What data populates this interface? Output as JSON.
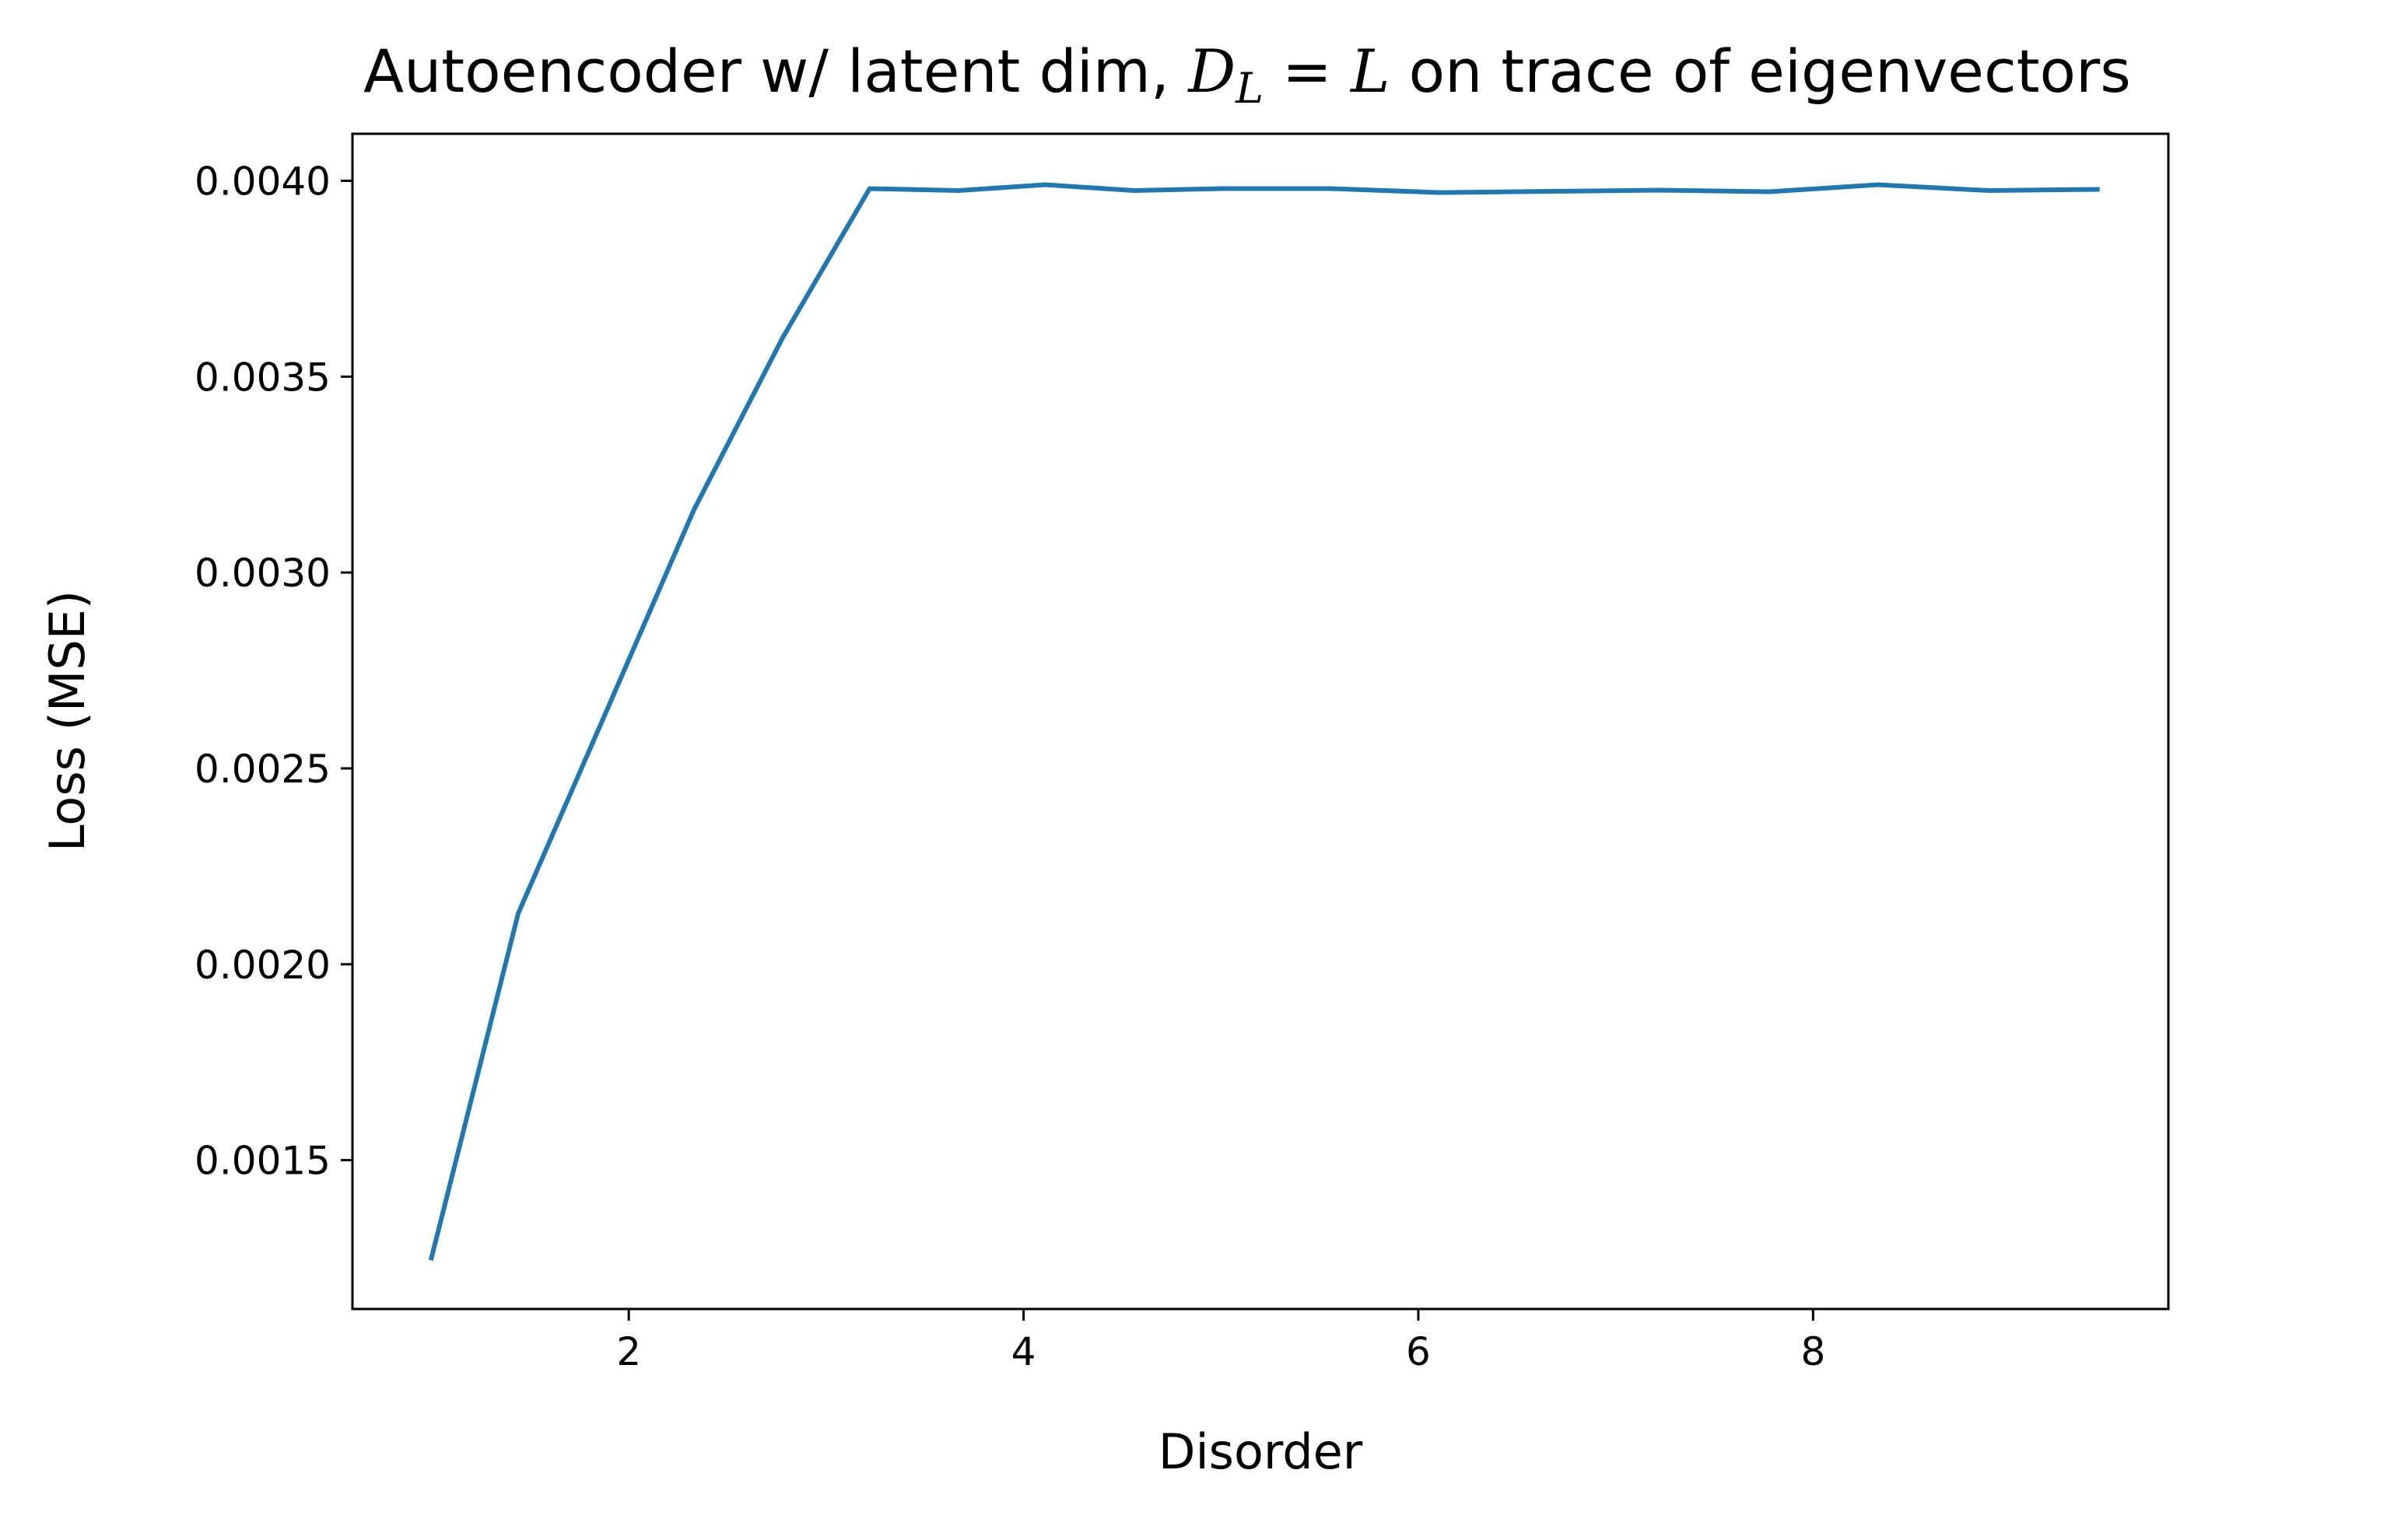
{
  "chart_data": {
    "type": "line",
    "title": "Autoencoder w/ latent dim, D_L = L on trace of eigenvectors",
    "title_parts": {
      "prefix": "Autoencoder w/ latent dim, ",
      "math_symbol": "D",
      "math_subscript": "L",
      "math_equals": " = ",
      "math_rhs": "L",
      "suffix": " on trace of eigenvectors"
    },
    "xlabel": "Disorder",
    "ylabel": "Loss (MSE)",
    "xlim": [
      0.6,
      9.8
    ],
    "ylim": [
      0.00112,
      0.00412
    ],
    "xticks": [
      2,
      4,
      6,
      8
    ],
    "xtick_labels": [
      "2",
      "4",
      "6",
      "8"
    ],
    "yticks": [
      0.0015,
      0.002,
      0.0025,
      0.003,
      0.0035,
      0.004
    ],
    "ytick_labels": [
      "0.0015",
      "0.0020",
      "0.0025",
      "0.0030",
      "0.0035",
      "0.0040"
    ],
    "grid": false,
    "legend": "none",
    "series": [
      {
        "color": "#1f77b4",
        "x": [
          1.0,
          1.44,
          1.89,
          2.33,
          2.78,
          3.22,
          3.67,
          4.11,
          4.56,
          5.0,
          5.56,
          6.11,
          6.67,
          7.22,
          7.78,
          8.33,
          8.89,
          9.44
        ],
        "y": [
          0.00125,
          0.00213,
          0.00265,
          0.00316,
          0.0036,
          0.00398,
          0.003975,
          0.00399,
          0.003975,
          0.00398,
          0.00398,
          0.00397,
          0.003973,
          0.003976,
          0.003972,
          0.00399,
          0.003975,
          0.003978
        ]
      }
    ]
  }
}
